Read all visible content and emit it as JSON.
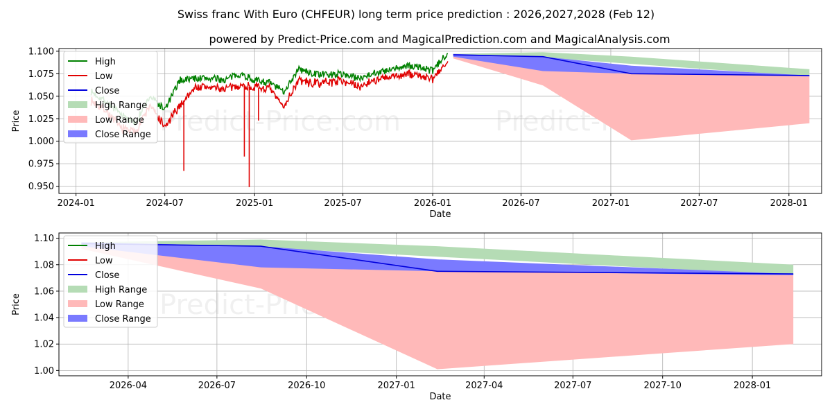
{
  "title": "Swiss franc With Euro (CHFEUR) long term price prediction : 2026,2027,2028 (Feb 12)",
  "subtitle": "powered by Predict-Price.com and MagicalPrediction.com and MagicalAnalysis.com",
  "watermark": "Predict-Price.com",
  "colors": {
    "high": "#008000",
    "low": "#e00000",
    "close": "#0000dd",
    "high_range": "#b5dcb5",
    "low_range": "#ffb9b9",
    "close_range": "#7a7aff"
  },
  "chart_data": [
    {
      "type": "line",
      "panel": "top",
      "xlabel": "Date",
      "ylabel": "Price",
      "x_ticks": [
        "2024-01",
        "2024-07",
        "2025-01",
        "2025-07",
        "2026-01",
        "2026-07",
        "2027-01",
        "2027-07",
        "2028-01"
      ],
      "y_ticks": [
        "0.950",
        "0.975",
        "1.000",
        "1.025",
        "1.050",
        "1.075",
        "1.100"
      ],
      "ylim": [
        0.942,
        1.103
      ],
      "grid": true,
      "legend_position": "top-left",
      "legend": [
        "High",
        "Low",
        "Close",
        "High Range",
        "Low Range",
        "Close Range"
      ],
      "history_period": [
        "2024-02",
        "2026-02"
      ],
      "history_approx": {
        "dates": [
          "2024-02",
          "2024-03",
          "2024-04",
          "2024-05",
          "2024-06",
          "2024-07",
          "2024-08",
          "2024-09",
          "2024-10",
          "2024-11",
          "2024-12",
          "2025-01",
          "2025-02",
          "2025-03",
          "2025-04",
          "2025-05",
          "2025-06",
          "2025-07",
          "2025-08",
          "2025-09",
          "2025-10",
          "2025-11",
          "2025-12",
          "2026-01",
          "2026-02"
        ],
        "high": [
          1.055,
          1.045,
          1.03,
          1.02,
          1.05,
          1.035,
          1.068,
          1.07,
          1.07,
          1.068,
          1.075,
          1.068,
          1.065,
          1.055,
          1.08,
          1.075,
          1.074,
          1.075,
          1.07,
          1.076,
          1.078,
          1.083,
          1.083,
          1.078,
          1.099
        ],
        "low": [
          1.045,
          1.035,
          1.015,
          1.01,
          1.04,
          1.015,
          1.04,
          1.06,
          1.06,
          1.058,
          1.062,
          1.06,
          1.058,
          1.038,
          1.068,
          1.064,
          1.066,
          1.068,
          1.06,
          1.068,
          1.07,
          1.074,
          1.074,
          1.068,
          1.09
        ]
      },
      "spikes_low": [
        {
          "date": "2024-08",
          "value": 0.967
        },
        {
          "date": "2024-12",
          "value": 0.983
        },
        {
          "date": "2024-12",
          "value": 0.949
        },
        {
          "date": "2025-01",
          "value": 1.023
        }
      ],
      "forecast": {
        "dates": [
          "2026-02-12",
          "2026-08-15",
          "2027-02-12",
          "2028-02-12"
        ],
        "close": [
          1.096,
          1.094,
          1.075,
          1.073
        ],
        "high_range_upper": [
          1.097,
          1.099,
          1.094,
          1.08
        ],
        "high_range_lower": [
          1.095,
          1.093,
          1.086,
          1.072
        ],
        "low_range_upper": [
          1.094,
          1.09,
          1.08,
          1.072
        ],
        "low_range_lower": [
          1.092,
          1.062,
          1.001,
          1.02
        ],
        "close_range_upper": [
          1.097,
          1.094,
          1.084,
          1.073
        ],
        "close_range_lower": [
          1.094,
          1.078,
          1.075,
          1.072
        ]
      }
    },
    {
      "type": "line",
      "panel": "bottom",
      "xlabel": "Date",
      "ylabel": "Price",
      "x_ticks": [
        "2026-04",
        "2026-07",
        "2026-10",
        "2027-01",
        "2027-04",
        "2027-07",
        "2027-10",
        "2028-01"
      ],
      "y_ticks": [
        "1.00",
        "1.02",
        "1.04",
        "1.06",
        "1.08",
        "1.10"
      ],
      "ylim": [
        0.996,
        1.104
      ],
      "grid": true,
      "legend_position": "top-left",
      "legend": [
        "High",
        "Low",
        "Close",
        "High Range",
        "Low Range",
        "Close Range"
      ]
    }
  ]
}
